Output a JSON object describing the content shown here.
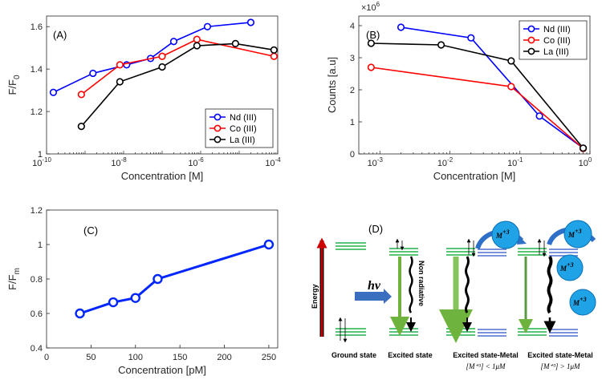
{
  "chart_data": [
    {
      "id": "A",
      "type": "line",
      "panel_label": "(A)",
      "xlabel": "Concentration [M]",
      "ylabel_main": "F/F",
      "ylabel_sub": "0",
      "xscale": "log",
      "xlim": [
        1e-10,
        0.0001
      ],
      "ylim": [
        1,
        1.65
      ],
      "yticks": [
        1,
        1.2,
        1.4,
        1.6
      ],
      "ytick_labels": [
        "1",
        "1.2",
        "1.4",
        "1.6"
      ],
      "xtick_labels": [
        {
          "base": "10",
          "exp": "-10"
        },
        {
          "base": "10",
          "exp": "-8"
        },
        {
          "base": "10",
          "exp": "-6"
        },
        {
          "base": "10",
          "exp": "-4"
        }
      ],
      "legend_position": "bottom-right",
      "series": [
        {
          "name": "Nd (III)",
          "color": "#0000ff",
          "x": [
            1.5e-10,
            1.6e-09,
            1.2e-08,
            5e-08,
            2e-07,
            1.5e-06,
            2e-05
          ],
          "y": [
            1.29,
            1.38,
            1.42,
            1.45,
            1.53,
            1.6,
            1.62
          ]
        },
        {
          "name": "Co (III)",
          "color": "#ff0000",
          "x": [
            8e-10,
            8e-09,
            1e-07,
            8e-07,
            8e-05
          ],
          "y": [
            1.28,
            1.42,
            1.46,
            1.54,
            1.46
          ]
        },
        {
          "name": "La  (III)",
          "color": "#000000",
          "x": [
            8e-10,
            8e-09,
            1e-07,
            8e-07,
            8e-06,
            8e-05
          ],
          "y": [
            1.13,
            1.34,
            1.41,
            1.51,
            1.52,
            1.49
          ]
        }
      ]
    },
    {
      "id": "B",
      "type": "line",
      "panel_label": "(B)",
      "xlabel": "Concentration [M]",
      "ylabel": "Counts [a.u]",
      "multiplier_base": "×10",
      "multiplier_exp": "6",
      "xscale": "log",
      "xlim": [
        0.0005,
        1
      ],
      "ylim": [
        0,
        4.3
      ],
      "yticks": [
        0,
        1,
        2,
        3,
        4
      ],
      "ytick_labels": [
        "0",
        "1",
        "2",
        "3",
        "4"
      ],
      "xtick_labels": [
        {
          "base": "10",
          "exp": "-3"
        },
        {
          "base": "10",
          "exp": "-2"
        },
        {
          "base": "10",
          "exp": "-1"
        },
        {
          "base": "10",
          "exp": "0"
        }
      ],
      "legend_position": "top-right",
      "series": [
        {
          "name": "Nd (III)",
          "color": "#0000ff",
          "x": [
            0.002,
            0.02,
            0.19,
            0.8
          ],
          "y": [
            3.95,
            3.62,
            1.18,
            0.18
          ]
        },
        {
          "name": "Co (III)",
          "color": "#ff0000",
          "x": [
            0.00075,
            0.075,
            0.8
          ],
          "y": [
            2.7,
            2.1,
            0.17
          ]
        },
        {
          "name": "La (III)",
          "color": "#000000",
          "x": [
            0.00075,
            0.0075,
            0.075,
            0.8
          ],
          "y": [
            3.45,
            3.4,
            2.9,
            0.18
          ]
        }
      ]
    },
    {
      "id": "C",
      "type": "line",
      "panel_label": "(C)",
      "xlabel": "Concentration [pM]",
      "ylabel_main": "F/F",
      "ylabel_sub": "m",
      "xscale": "linear",
      "xlim": [
        0,
        260
      ],
      "ylim": [
        0.4,
        1.2
      ],
      "yticks": [
        0.4,
        0.6,
        0.8,
        1,
        1.2
      ],
      "ytick_labels": [
        "0.4",
        "0.6",
        "0.8",
        "1",
        "1.2"
      ],
      "xticks": [
        0,
        50,
        100,
        150,
        200,
        250
      ],
      "xtick_labels": [
        "0",
        "50",
        "100",
        "150",
        "200",
        "250"
      ],
      "series": [
        {
          "name": "F/Fm",
          "color": "#0026ff",
          "x": [
            37.5,
            75,
            100,
            125,
            250
          ],
          "y": [
            0.6,
            0.665,
            0.69,
            0.8,
            1.0
          ]
        }
      ]
    }
  ],
  "diagram": {
    "panel_label": "(D)",
    "energy_label": "Energy",
    "hv_label": "hν",
    "nonrad_label": "Non radiative",
    "metal_label": "M",
    "metal_charge": "+3",
    "columns": [
      {
        "title": "Ground state",
        "subtitle": ""
      },
      {
        "title": "Excited state",
        "subtitle": ""
      },
      {
        "title": "Excited state-Metal",
        "subtitle": "[M⁺³] < 1μM"
      },
      {
        "title": "Excited state-Metal",
        "subtitle": "[M⁺³] > 1μM"
      }
    ],
    "colors": {
      "level_green": "#21b04b",
      "level_blue": "#4f6fcf",
      "arrow_red": "#cc0000",
      "arrow_green": "#6fb33f",
      "ball_fill": "#1fa3e6",
      "ball_stroke": "#0a6fb4",
      "curve_blue": "#2e6fc7",
      "hv_arrow": "#3a6fbf"
    }
  }
}
